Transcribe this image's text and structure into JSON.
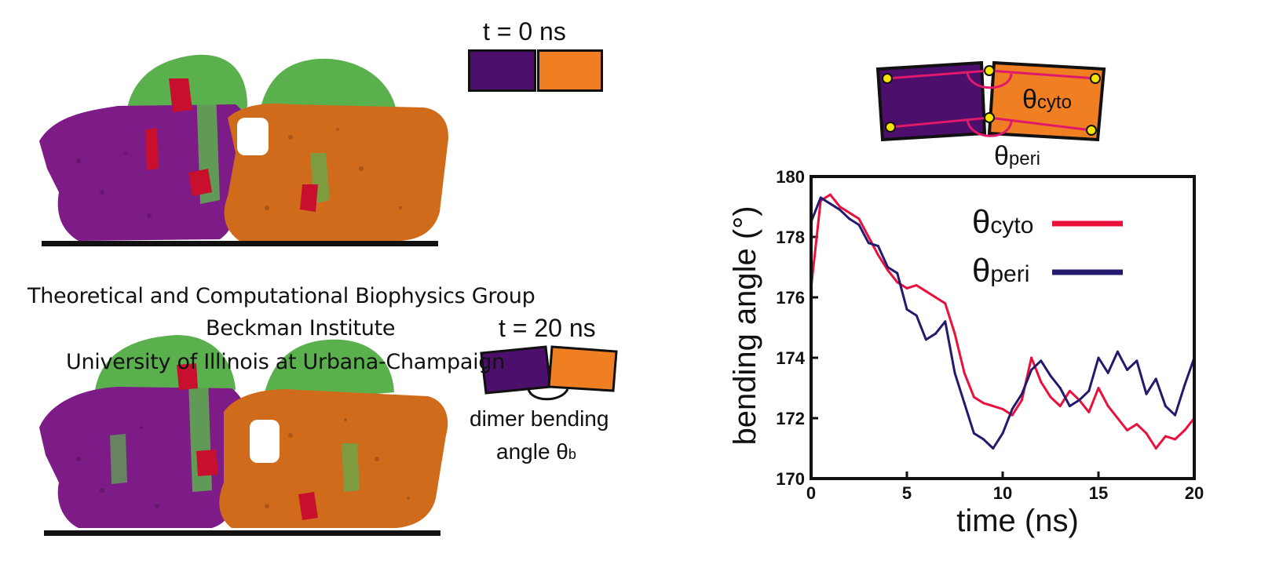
{
  "colors": {
    "monomer_a": "#4c0f6b",
    "monomer_b": "#ef7f22",
    "protein_a": "#7d1b87",
    "protein_b": "#d06b1c",
    "protein_cap": "#5bb04e",
    "ligand": "#c8102e",
    "theta_cyto": "#e8113b",
    "theta_peri": "#231a6e",
    "angle_link": "#e0196b",
    "hinge_dot": "#f6e500"
  },
  "panel_top": {
    "time_label": "t = 0 ns"
  },
  "panel_bottom": {
    "time_label": "t = 20 ns",
    "caption_line1": "dimer bending",
    "caption_line2": "angle θ",
    "caption_sub": "b"
  },
  "watermark": {
    "line1": "Theoretical and Computational Biophysics Group",
    "line2": "Beckman Institute",
    "line3": "University of Illinois at Urbana-Champaign"
  },
  "schematic": {
    "cyto_symbol": "θ",
    "cyto_sub": "cyto",
    "peri_symbol": "θ",
    "peri_sub": "peri"
  },
  "chart_data": {
    "type": "line",
    "xlabel": "time (ns)",
    "ylabel": "bending angle (°)",
    "xlim": [
      0,
      20
    ],
    "ylim": [
      170,
      180
    ],
    "xticks": [
      0,
      5,
      10,
      15,
      20
    ],
    "yticks": [
      170,
      172,
      174,
      176,
      178,
      180
    ],
    "legend_position": "top-right",
    "series": [
      {
        "name": "θcyto",
        "legend_symbol": "θ",
        "legend_sub": "cyto",
        "color_key": "theta_cyto",
        "x": [
          0,
          0.5,
          1,
          1.5,
          2,
          2.5,
          3,
          3.5,
          4,
          4.5,
          5,
          5.5,
          6,
          6.5,
          7,
          7.5,
          8,
          8.5,
          9,
          9.5,
          10,
          10.5,
          11,
          11.5,
          12,
          12.5,
          13,
          13.5,
          14,
          14.5,
          15,
          15.5,
          16,
          16.5,
          17,
          17.5,
          18,
          18.5,
          19,
          19.5,
          20
        ],
        "values": [
          176.3,
          179.2,
          179.4,
          179.0,
          178.8,
          178.6,
          178.0,
          177.4,
          176.9,
          176.5,
          176.3,
          176.4,
          176.2,
          176.0,
          175.8,
          174.8,
          173.5,
          172.7,
          172.5,
          172.4,
          172.3,
          172.1,
          172.6,
          174.0,
          173.2,
          172.7,
          172.4,
          172.9,
          172.6,
          172.2,
          173.0,
          172.4,
          172.0,
          171.6,
          171.8,
          171.5,
          171.0,
          171.4,
          171.3,
          171.6,
          172.0
        ]
      },
      {
        "name": "θperi",
        "legend_symbol": "θ",
        "legend_sub": "peri",
        "color_key": "theta_peri",
        "x": [
          0,
          0.5,
          1,
          1.5,
          2,
          2.5,
          3,
          3.5,
          4,
          4.5,
          5,
          5.5,
          6,
          6.5,
          7,
          7.5,
          8,
          8.5,
          9,
          9.5,
          10,
          10.5,
          11,
          11.5,
          12,
          12.5,
          13,
          13.5,
          14,
          14.5,
          15,
          15.5,
          16,
          16.5,
          17,
          17.5,
          18,
          18.5,
          19,
          19.5,
          20
        ],
        "values": [
          178.5,
          179.3,
          179.1,
          178.9,
          178.6,
          178.4,
          177.8,
          177.7,
          177.0,
          176.8,
          175.6,
          175.4,
          174.6,
          174.8,
          175.2,
          173.5,
          172.5,
          171.5,
          171.3,
          171.0,
          171.5,
          172.3,
          172.8,
          173.6,
          173.9,
          173.4,
          173.0,
          172.4,
          172.6,
          172.9,
          174.0,
          173.5,
          174.2,
          173.6,
          173.9,
          172.8,
          173.3,
          172.4,
          172.1,
          173.1,
          174.0
        ]
      }
    ]
  }
}
